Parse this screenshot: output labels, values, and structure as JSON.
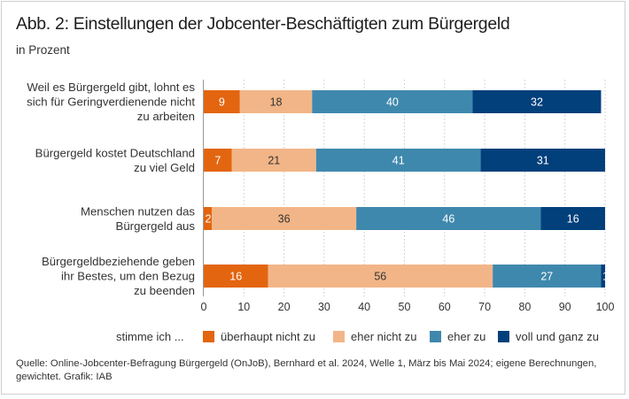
{
  "header": {
    "title": "Abb. 2: Einstellungen der Jobcenter-Beschäftigten zum Bürgergeld",
    "subtitle": "in Prozent"
  },
  "legend": {
    "lead": "stimme ich ...",
    "items": [
      {
        "label": "überhaupt nicht zu",
        "color": "#e3650f"
      },
      {
        "label": "eher nicht zu",
        "color": "#f2b587"
      },
      {
        "label": "eher zu",
        "color": "#3f88ad"
      },
      {
        "label": "voll und ganz zu",
        "color": "#02407c"
      }
    ]
  },
  "source": "Quelle: Online-Jobcenter-Befragung Bürgergeld (OnJoB), Bernhard et al. 2024, Welle 1, März bis Mai 2024; eigene Berechnungen, gewichtet. Grafik: IAB",
  "chart_data": {
    "type": "bar",
    "orientation": "horizontal",
    "stacked": true,
    "title": "Abb. 2: Einstellungen der Jobcenter-Beschäftigten zum Bürgergeld",
    "subtitle": "in Prozent",
    "xlabel": "",
    "ylabel": "",
    "xlim": [
      0,
      100
    ],
    "xticks": [
      0,
      10,
      20,
      30,
      40,
      50,
      60,
      70,
      80,
      90,
      100
    ],
    "grid": "vertical dotted",
    "legend_position": "bottom",
    "categories": [
      [
        "Weil es Bürgergeld gibt, lohnt es",
        "sich für Geringverdienende nicht",
        "zu arbeiten"
      ],
      [
        "Bürgergeld kostet Deutschland",
        "zu viel Geld"
      ],
      [
        "Menschen nutzen das",
        "Bürgergeld aus"
      ],
      [
        "Bürgergeldbeziehende geben",
        "ihr Bestes, um den Bezug",
        "zu beenden"
      ]
    ],
    "series": [
      {
        "name": "überhaupt nicht zu",
        "color": "#e3650f",
        "label_color": "#ffffff",
        "values": [
          9,
          7,
          2,
          16
        ]
      },
      {
        "name": "eher nicht zu",
        "color": "#f2b587",
        "label_color": "#333333",
        "values": [
          18,
          21,
          36,
          56
        ]
      },
      {
        "name": "eher zu",
        "color": "#3f88ad",
        "label_color": "#ffffff",
        "values": [
          40,
          41,
          46,
          27
        ]
      },
      {
        "name": "voll und ganz zu",
        "color": "#02407c",
        "label_color": "#ffffff",
        "values": [
          32,
          31,
          16,
          1
        ]
      }
    ]
  }
}
